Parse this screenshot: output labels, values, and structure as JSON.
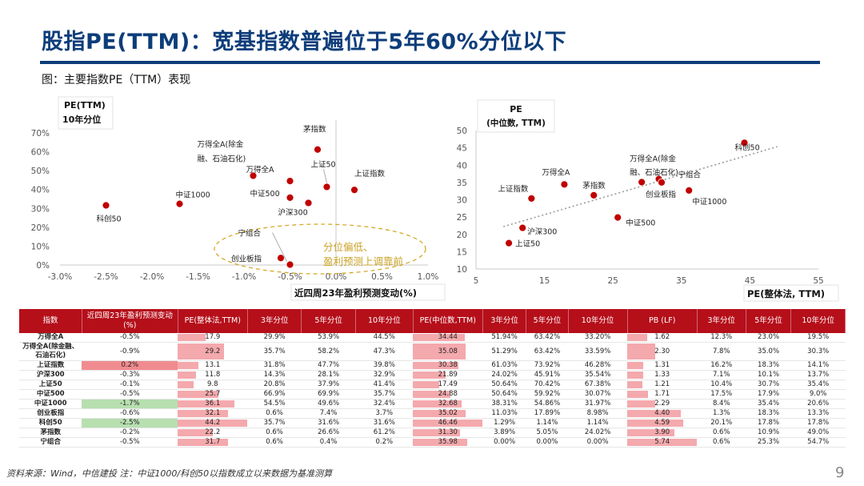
{
  "header": {
    "title": "股指PE(TTM)：宽基指数普遍位于5年60%分位以下",
    "subtitle": "图：主要指数PE（TTM）表现"
  },
  "chart_data": [
    {
      "type": "scatter",
      "ylabel_line1": "PE(TTM)",
      "ylabel_line2": "10年分位",
      "xlabel": "近四周23年盈利预测变动(%)",
      "xlim": [
        -3.0,
        1.0
      ],
      "ylim": [
        0,
        70
      ],
      "xticks": [
        "-3.0%",
        "-2.5%",
        "-2.0%",
        "-1.5%",
        "-1.0%",
        "-0.5%",
        "0.0%",
        "0.5%",
        "1.0%"
      ],
      "yticks": [
        "0%",
        "10%",
        "20%",
        "30%",
        "40%",
        "50%",
        "60%",
        "70%"
      ],
      "annotation_line1": "分位偏低、",
      "annotation_line2": "盈利预测上调靠前",
      "points": [
        {
          "label": "科创50",
          "x": -2.5,
          "y": 31.6
        },
        {
          "label": "中证1000",
          "x": -1.7,
          "y": 32.4
        },
        {
          "label": "万得全A(除金融、石油石化)",
          "x": -0.9,
          "y": 47.3
        },
        {
          "label": "万得全A",
          "x": -0.5,
          "y": 44.5
        },
        {
          "label": "中证500",
          "x": -0.5,
          "y": 35.7
        },
        {
          "label": "沪深300",
          "x": -0.3,
          "y": 32.9
        },
        {
          "label": "茅指数",
          "x": -0.2,
          "y": 61.2
        },
        {
          "label": "上证50",
          "x": -0.1,
          "y": 41.4
        },
        {
          "label": "上证指数",
          "x": 0.2,
          "y": 39.8
        },
        {
          "label": "创业板指",
          "x": -0.6,
          "y": 3.7
        },
        {
          "label": "宁组合",
          "x": -0.5,
          "y": 0.2
        }
      ],
      "point_label_texts": {
        "wind_exfin_line1": "万得全A(除金",
        "wind_exfin_line2": "融、石油石化)"
      }
    },
    {
      "type": "scatter",
      "ylabel_line1": "PE",
      "ylabel_line2": "(中位数, TTM)",
      "xlabel": "PE(整体法, TTM)",
      "xlim": [
        5,
        55
      ],
      "ylim": [
        10,
        50
      ],
      "xticks": [
        "5",
        "15",
        "25",
        "35",
        "45",
        "55"
      ],
      "yticks": [
        "10",
        "15",
        "20",
        "25",
        "30",
        "35",
        "40",
        "45",
        "50"
      ],
      "trendline": "linear",
      "points": [
        {
          "label": "上证50",
          "x": 9.8,
          "y": 17.49
        },
        {
          "label": "沪深300",
          "x": 11.8,
          "y": 21.89
        },
        {
          "label": "上证指数",
          "x": 13.1,
          "y": 30.38
        },
        {
          "label": "万得全A",
          "x": 17.9,
          "y": 34.44
        },
        {
          "label": "茅指数",
          "x": 22.2,
          "y": 31.3
        },
        {
          "label": "中证500",
          "x": 25.7,
          "y": 24.88
        },
        {
          "label": "万得全A(除金融、石油石化)",
          "x": 29.2,
          "y": 35.08
        },
        {
          "label": "宁组合",
          "x": 31.7,
          "y": 35.98
        },
        {
          "label": "创业板指",
          "x": 32.1,
          "y": 35.02
        },
        {
          "label": "中证1000",
          "x": 36.1,
          "y": 32.68
        },
        {
          "label": "科创50",
          "x": 44.2,
          "y": 46.46
        }
      ],
      "point_label_texts": {
        "wind_exfin_line1": "万得全A(除金",
        "wind_exfin_line2": "融、石油石化)"
      }
    }
  ],
  "table": {
    "headers": [
      "指数",
      "近四周23年盈利预测变动(%)",
      "PE(整体法,TTM)",
      "3年分位",
      "5年分位",
      "10年分位",
      "PE(中位数,TTM)",
      "3年分位",
      "5年分位",
      "10年分位",
      "PB (LF)",
      "3年分位",
      "5年分位",
      "10年分位"
    ],
    "rows": [
      {
        "name": "万得全A",
        "chg": "-0.5%",
        "chg_val": -0.5,
        "pe": "17.9",
        "pe_v": 17.9,
        "pe3": "29.9%",
        "pe5": "53.9%",
        "pe10": "44.5%",
        "pem": "34.44",
        "pem_v": 34.44,
        "pem3": "51.94%",
        "pem5": "63.42%",
        "pem10": "33.20%",
        "pb": "1.62",
        "pb_v": 1.62,
        "pb3": "12.3%",
        "pb5": "23.0%",
        "pb10": "19.5%"
      },
      {
        "name": "万得全A(除金融、石油石化)",
        "chg": "-0.9%",
        "chg_val": -0.9,
        "pe": "29.2",
        "pe_v": 29.2,
        "pe3": "35.7%",
        "pe5": "58.2%",
        "pe10": "47.3%",
        "pem": "35.08",
        "pem_v": 35.08,
        "pem3": "51.29%",
        "pem5": "63.42%",
        "pem10": "33.59%",
        "pb": "2.30",
        "pb_v": 2.3,
        "pb3": "7.8%",
        "pb5": "35.0%",
        "pb10": "30.3%"
      },
      {
        "name": "上证指数",
        "chg": "0.2%",
        "chg_val": 0.2,
        "pe": "13.1",
        "pe_v": 13.1,
        "pe3": "31.8%",
        "pe5": "47.7%",
        "pe10": "39.8%",
        "pem": "30.38",
        "pem_v": 30.38,
        "pem3": "61.03%",
        "pem5": "73.92%",
        "pem10": "46.28%",
        "pb": "1.31",
        "pb_v": 1.31,
        "pb3": "16.2%",
        "pb5": "18.3%",
        "pb10": "14.1%"
      },
      {
        "name": "沪深300",
        "chg": "-0.3%",
        "chg_val": -0.3,
        "pe": "11.8",
        "pe_v": 11.8,
        "pe3": "14.3%",
        "pe5": "28.1%",
        "pe10": "32.9%",
        "pem": "21.89",
        "pem_v": 21.89,
        "pem3": "24.02%",
        "pem5": "45.91%",
        "pem10": "35.54%",
        "pb": "1.33",
        "pb_v": 1.33,
        "pb3": "7.1%",
        "pb5": "10.1%",
        "pb10": "13.7%"
      },
      {
        "name": "上证50",
        "chg": "-0.1%",
        "chg_val": -0.1,
        "pe": "9.8",
        "pe_v": 9.8,
        "pe3": "20.8%",
        "pe5": "37.9%",
        "pe10": "41.4%",
        "pem": "17.49",
        "pem_v": 17.49,
        "pem3": "50.64%",
        "pem5": "70.42%",
        "pem10": "67.38%",
        "pb": "1.21",
        "pb_v": 1.21,
        "pb3": "10.4%",
        "pb5": "30.7%",
        "pb10": "35.4%"
      },
      {
        "name": "中证500",
        "chg": "-0.5%",
        "chg_val": -0.5,
        "pe": "25.7",
        "pe_v": 25.7,
        "pe3": "66.9%",
        "pe5": "69.9%",
        "pe10": "35.7%",
        "pem": "24.88",
        "pem_v": 24.88,
        "pem3": "50.64%",
        "pem5": "59.92%",
        "pem10": "30.07%",
        "pb": "1.71",
        "pb_v": 1.71,
        "pb3": "17.5%",
        "pb5": "17.9%",
        "pb10": "9.0%"
      },
      {
        "name": "中证1000",
        "chg": "-1.7%",
        "chg_val": -1.7,
        "pe": "36.1",
        "pe_v": 36.1,
        "pe3": "54.5%",
        "pe5": "49.6%",
        "pe10": "32.4%",
        "pem": "32.68",
        "pem_v": 32.68,
        "pem3": "38.31%",
        "pem5": "54.86%",
        "pem10": "31.97%",
        "pb": "2.29",
        "pb_v": 2.29,
        "pb3": "8.4%",
        "pb5": "35.4%",
        "pb10": "20.6%"
      },
      {
        "name": "创业板指",
        "chg": "-0.6%",
        "chg_val": -0.6,
        "pe": "32.1",
        "pe_v": 32.1,
        "pe3": "0.6%",
        "pe5": "7.4%",
        "pe10": "3.7%",
        "pem": "35.02",
        "pem_v": 35.02,
        "pem3": "11.03%",
        "pem5": "17.89%",
        "pem10": "8.98%",
        "pb": "4.40",
        "pb_v": 4.4,
        "pb3": "1.3%",
        "pb5": "18.3%",
        "pb10": "13.3%"
      },
      {
        "name": "科创50",
        "chg": "-2.5%",
        "chg_val": -2.5,
        "pe": "44.2",
        "pe_v": 44.2,
        "pe3": "35.7%",
        "pe5": "31.6%",
        "pe10": "31.6%",
        "pem": "46.46",
        "pem_v": 46.46,
        "pem3": "1.29%",
        "pem5": "1.14%",
        "pem10": "1.14%",
        "pb": "4.59",
        "pb_v": 4.59,
        "pb3": "20.1%",
        "pb5": "17.8%",
        "pb10": "17.8%"
      },
      {
        "name": "茅指数",
        "chg": "-0.2%",
        "chg_val": -0.2,
        "pe": "22.2",
        "pe_v": 22.2,
        "pe3": "0.6%",
        "pe5": "26.6%",
        "pe10": "61.2%",
        "pem": "31.30",
        "pem_v": 31.3,
        "pem3": "3.89%",
        "pem5": "5.05%",
        "pem10": "24.02%",
        "pb": "3.90",
        "pb_v": 3.9,
        "pb3": "0.6%",
        "pb5": "10.9%",
        "pb10": "49.0%"
      },
      {
        "name": "宁组合",
        "chg": "-0.5%",
        "chg_val": -0.5,
        "pe": "31.7",
        "pe_v": 31.7,
        "pe3": "0.6%",
        "pe5": "0.4%",
        "pe10": "0.2%",
        "pem": "35.98",
        "pem_v": 35.98,
        "pem3": "0.00%",
        "pem5": "0.00%",
        "pem10": "0.00%",
        "pb": "5.74",
        "pb_v": 5.74,
        "pb3": "0.6%",
        "pb5": "25.3%",
        "pb10": "54.7%"
      }
    ]
  },
  "footer": {
    "source": "资料来源：Wind，中信建投   注：中证1000/科创50以指数成立以来数据为基准测算",
    "page": "9"
  },
  "colors": {
    "accent": "#0d3d7a",
    "point": "#c00000",
    "header_bg": "#b50f1a",
    "bar": "#f4a9ad",
    "positive": "#f08b8f",
    "negative": "#b7dfb0",
    "annotation": "#c9a227"
  }
}
